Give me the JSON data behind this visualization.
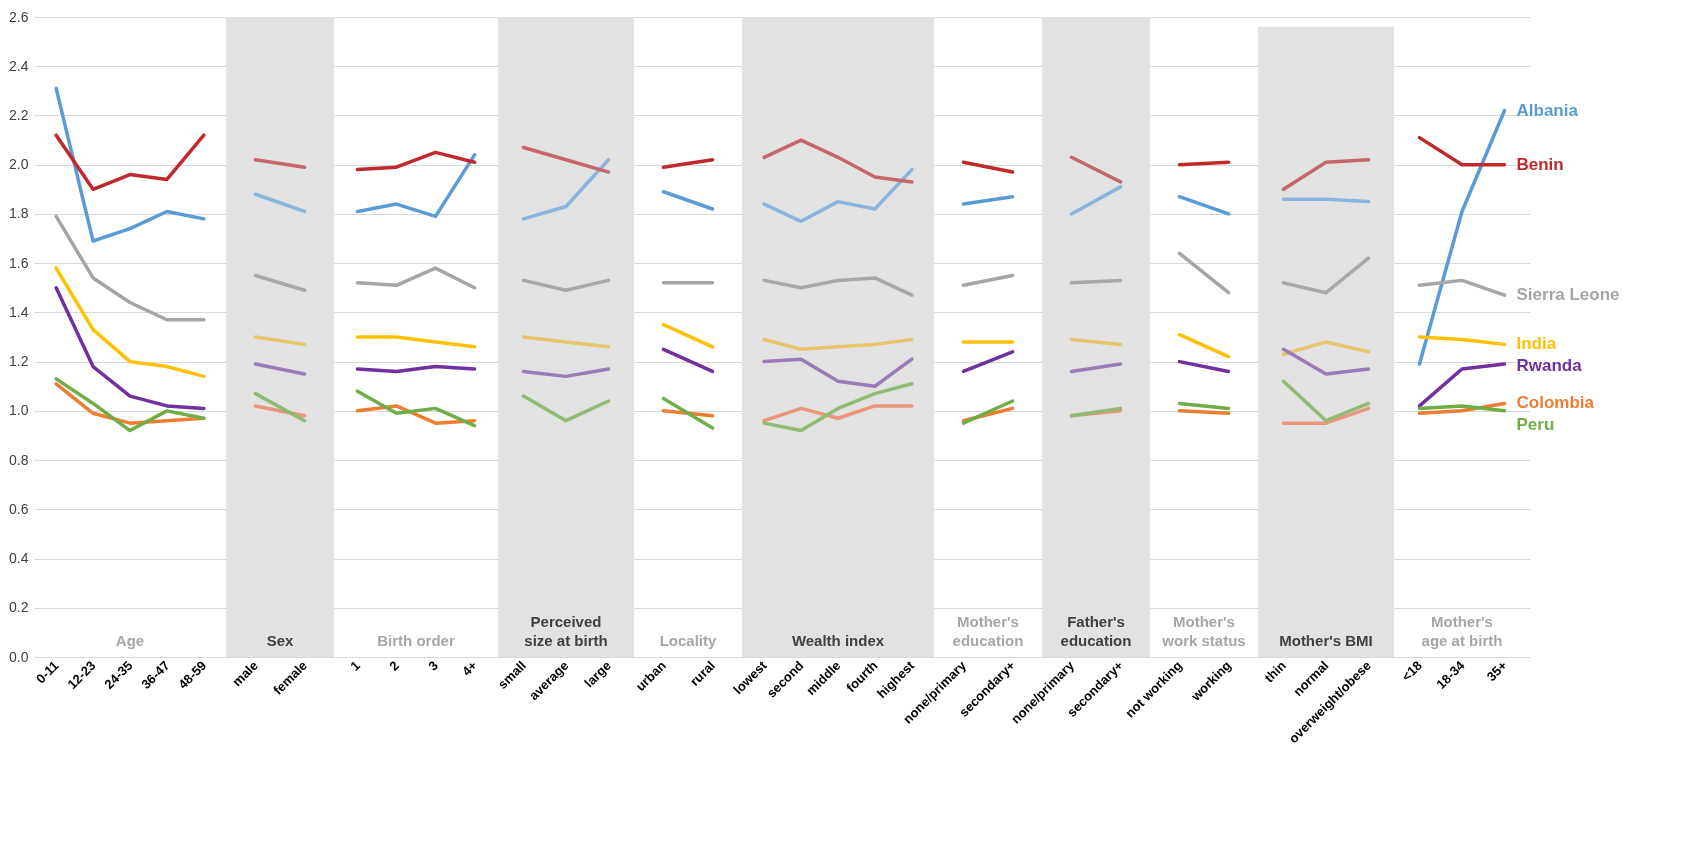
{
  "chart_data": [
    {
      "type": "line",
      "xlabel": "Age",
      "categories": [
        "0-11",
        "12-23",
        "24-35",
        "36-47",
        "48-59"
      ],
      "ylim": [
        0,
        2.6
      ],
      "yticks": [
        {
          "value": 0,
          "label": "0.0"
        },
        {
          "value": 0.2,
          "label": "0.2"
        },
        {
          "value": 0.4,
          "label": "0.4"
        },
        {
          "value": 0.6,
          "label": "0.6"
        },
        {
          "value": 0.8,
          "label": "0.8"
        },
        {
          "value": 1,
          "label": "1.0"
        },
        {
          "value": 1.2,
          "label": "1.2"
        },
        {
          "value": 1.4,
          "label": "1.4"
        },
        {
          "value": 1.6,
          "label": "1.6"
        },
        {
          "value": 1.8,
          "label": "1.8"
        },
        {
          "value": 2,
          "label": "2.0"
        },
        {
          "value": 2.2,
          "label": "2.2"
        },
        {
          "value": 2.4,
          "label": "2.4"
        },
        {
          "value": 2.6,
          "label": "2.6"
        }
      ],
      "grid": "y",
      "series": [
        {
          "color": "#5b9bd5",
          "values": [
            2.31,
            1.69,
            1.74,
            1.81,
            1.78
          ]
        },
        {
          "color": "#c0282d",
          "values": [
            2.12,
            1.9,
            1.96,
            1.94,
            2.12
          ]
        },
        {
          "color": "#a5a5a5",
          "values": [
            1.79,
            1.54,
            1.44,
            1.37,
            1.37
          ]
        },
        {
          "color": "#ffc000",
          "values": [
            1.58,
            1.33,
            1.2,
            1.18,
            1.14
          ]
        },
        {
          "color": "#7030a0",
          "values": [
            1.5,
            1.18,
            1.06,
            1.02,
            1.01
          ]
        },
        {
          "color": "#ed7d31",
          "values": [
            1.11,
            0.99,
            0.95,
            0.96,
            0.97
          ]
        },
        {
          "color": "#70ad47",
          "values": [
            1.13,
            1.03,
            0.92,
            1.0,
            0.97
          ]
        }
      ]
    },
    {
      "type": "line",
      "xlabel": "Sex",
      "categories": [
        "male",
        "female"
      ],
      "ylim": [
        0,
        2.6
      ],
      "yticks": [
        0,
        0.2,
        0.4,
        0.6,
        0.8,
        1,
        1.2,
        1.4,
        1.6,
        1.8,
        2,
        2.2,
        2.4,
        2.6
      ],
      "grid": "y",
      "tick_labels": "x",
      "bands": [
        {
          "axis": "y",
          "from": 0,
          "to": 2.6,
          "color": "#e2e2e2"
        }
      ],
      "series": [
        {
          "color": "#8ab4dc",
          "values": [
            1.88,
            1.81
          ]
        },
        {
          "color": "#c4676b",
          "values": [
            2.02,
            1.99
          ]
        },
        {
          "color": "#a8a8a8",
          "values": [
            1.55,
            1.49
          ]
        },
        {
          "color": "#e6c46a",
          "values": [
            1.3,
            1.27
          ]
        },
        {
          "color": "#9a7bb5",
          "values": [
            1.19,
            1.15
          ]
        },
        {
          "color": "#e8977a",
          "values": [
            1.02,
            0.98
          ]
        },
        {
          "color": "#8fbb75",
          "values": [
            1.07,
            0.96
          ]
        }
      ]
    },
    {
      "type": "line",
      "xlabel": "Birth order",
      "categories": [
        "1",
        "2",
        "3",
        "4+"
      ],
      "ylim": [
        0,
        2.6
      ],
      "yticks": [
        0,
        0.2,
        0.4,
        0.6,
        0.8,
        1,
        1.2,
        1.4,
        1.6,
        1.8,
        2,
        2.2,
        2.4,
        2.6
      ],
      "grid": "y",
      "tick_labels": "x",
      "series": [
        {
          "color": "#5b9bd5",
          "values": [
            1.81,
            1.84,
            1.79,
            2.04
          ]
        },
        {
          "color": "#c0282d",
          "values": [
            1.98,
            1.99,
            2.05,
            2.01
          ]
        },
        {
          "color": "#a5a5a5",
          "values": [
            1.52,
            1.51,
            1.58,
            1.5
          ]
        },
        {
          "color": "#ffc000",
          "values": [
            1.3,
            1.3,
            1.28,
            1.26
          ]
        },
        {
          "color": "#7030a0",
          "values": [
            1.17,
            1.16,
            1.18,
            1.17
          ]
        },
        {
          "color": "#ed7d31",
          "values": [
            1.0,
            1.02,
            0.95,
            0.96
          ]
        },
        {
          "color": "#70ad47",
          "values": [
            1.08,
            0.99,
            1.01,
            0.94
          ]
        }
      ]
    },
    {
      "type": "line",
      "xlabel": "Perceived size at birth",
      "categories": [
        "small",
        "average",
        "large"
      ],
      "ylim": [
        0,
        2.6
      ],
      "yticks": [
        0,
        0.2,
        0.4,
        0.6,
        0.8,
        1,
        1.2,
        1.4,
        1.6,
        1.8,
        2,
        2.2,
        2.4,
        2.6
      ],
      "grid": "y",
      "tick_labels": "x",
      "bands": [
        {
          "axis": "y",
          "from": 0,
          "to": 2.6,
          "color": "#e2e2e2"
        }
      ],
      "series": [
        {
          "color": "#8ab4dc",
          "values": [
            1.78,
            1.83,
            2.02
          ]
        },
        {
          "color": "#c4676b",
          "values": [
            2.07,
            2.02,
            1.97
          ]
        },
        {
          "color": "#a8a8a8",
          "values": [
            1.53,
            1.49,
            1.53
          ]
        },
        {
          "color": "#e6c46a",
          "values": [
            1.3,
            1.28,
            1.26
          ]
        },
        {
          "color": "#9a7bb5",
          "values": [
            1.16,
            1.14,
            1.17
          ]
        },
        {
          "color": "#8fbb75",
          "values": [
            1.06,
            0.96,
            1.04
          ]
        }
      ]
    },
    {
      "type": "line",
      "xlabel": "Locality",
      "categories": [
        "urban",
        "rural"
      ],
      "ylim": [
        0,
        2.6
      ],
      "yticks": [
        0,
        0.2,
        0.4,
        0.6,
        0.8,
        1,
        1.2,
        1.4,
        1.6,
        1.8,
        2,
        2.2,
        2.4,
        2.6
      ],
      "grid": "y",
      "tick_labels": "x",
      "series": [
        {
          "color": "#5b9bd5",
          "values": [
            1.89,
            1.82
          ]
        },
        {
          "color": "#c0282d",
          "values": [
            1.99,
            2.02
          ]
        },
        {
          "color": "#a5a5a5",
          "values": [
            1.52,
            1.52
          ]
        },
        {
          "color": "#ffc000",
          "values": [
            1.35,
            1.26
          ]
        },
        {
          "color": "#7030a0",
          "values": [
            1.25,
            1.16
          ]
        },
        {
          "color": "#ed7d31",
          "values": [
            1.0,
            0.98
          ]
        },
        {
          "color": "#70ad47",
          "values": [
            1.05,
            0.93
          ]
        }
      ]
    },
    {
      "type": "line",
      "xlabel": "Wealth index",
      "categories": [
        "lowest",
        "second",
        "middle",
        "fourth",
        "highest"
      ],
      "ylim": [
        0,
        2.6
      ],
      "yticks": [
        0,
        0.2,
        0.4,
        0.6,
        0.8,
        1,
        1.2,
        1.4,
        1.6,
        1.8,
        2,
        2.2,
        2.4,
        2.6
      ],
      "grid": "y",
      "tick_labels": "x",
      "bands": [
        {
          "axis": "y",
          "from": 0,
          "to": 2.6,
          "color": "#e2e2e2"
        }
      ],
      "series": [
        {
          "color": "#8ab4dc",
          "values": [
            1.84,
            1.77,
            1.85,
            1.82,
            1.98
          ]
        },
        {
          "color": "#c4676b",
          "values": [
            2.03,
            2.1,
            2.03,
            1.95,
            1.93
          ]
        },
        {
          "color": "#a8a8a8",
          "values": [
            1.53,
            1.5,
            1.53,
            1.54,
            1.47
          ]
        },
        {
          "color": "#e6c46a",
          "values": [
            1.29,
            1.25,
            1.26,
            1.27,
            1.29
          ]
        },
        {
          "color": "#9a7bb5",
          "values": [
            1.2,
            1.21,
            1.12,
            1.1,
            1.21
          ]
        },
        {
          "color": "#e8977a",
          "values": [
            0.96,
            1.01,
            0.97,
            1.02,
            1.02
          ]
        },
        {
          "color": "#8fbb75",
          "values": [
            0.95,
            0.92,
            1.01,
            1.07,
            1.11
          ]
        }
      ]
    },
    {
      "type": "line",
      "xlabel": "Mother's education",
      "categories": [
        "none/primary",
        "secondary+"
      ],
      "ylim": [
        0,
        2.6
      ],
      "yticks": [
        0,
        0.2,
        0.4,
        0.6,
        0.8,
        1,
        1.2,
        1.4,
        1.6,
        1.8,
        2,
        2.2,
        2.4,
        2.6
      ],
      "grid": "y",
      "tick_labels": "x",
      "series": [
        {
          "color": "#5b9bd5",
          "values": [
            1.84,
            1.87
          ]
        },
        {
          "color": "#c0282d",
          "values": [
            2.01,
            1.97
          ]
        },
        {
          "color": "#a5a5a5",
          "values": [
            1.51,
            1.55
          ]
        },
        {
          "color": "#ffc000",
          "values": [
            1.28,
            1.28
          ]
        },
        {
          "color": "#7030a0",
          "values": [
            1.16,
            1.24
          ]
        },
        {
          "color": "#ed7d31",
          "values": [
            0.96,
            1.01
          ]
        },
        {
          "color": "#70ad47",
          "values": [
            0.95,
            1.04
          ]
        }
      ]
    },
    {
      "type": "line",
      "xlabel": "Father's education",
      "categories": [
        "none/primary",
        "secondary+"
      ],
      "ylim": [
        0,
        2.6
      ],
      "yticks": [
        0,
        0.2,
        0.4,
        0.6,
        0.8,
        1,
        1.2,
        1.4,
        1.6,
        1.8,
        2,
        2.2,
        2.4,
        2.6
      ],
      "grid": "y",
      "tick_labels": "x",
      "bands": [
        {
          "axis": "y",
          "from": 0,
          "to": 2.6,
          "color": "#e2e2e2"
        }
      ],
      "series": [
        {
          "color": "#8ab4dc",
          "values": [
            1.8,
            1.91
          ]
        },
        {
          "color": "#c4676b",
          "values": [
            2.03,
            1.93
          ]
        },
        {
          "color": "#a8a8a8",
          "values": [
            1.52,
            1.53
          ]
        },
        {
          "color": "#e6c46a",
          "values": [
            1.29,
            1.27
          ]
        },
        {
          "color": "#9a7bb5",
          "values": [
            1.16,
            1.19
          ]
        },
        {
          "color": "#e8977a",
          "values": [
            0.98,
            1.0
          ]
        },
        {
          "color": "#8fbb75",
          "values": [
            0.98,
            1.01
          ]
        }
      ]
    },
    {
      "type": "line",
      "xlabel": "Mother's work status",
      "categories": [
        "not working",
        "working"
      ],
      "ylim": [
        0,
        2.6
      ],
      "yticks": [
        0,
        0.2,
        0.4,
        0.6,
        0.8,
        1,
        1.2,
        1.4,
        1.6,
        1.8,
        2,
        2.2,
        2.4,
        2.6
      ],
      "grid": "y",
      "tick_labels": "x",
      "series": [
        {
          "color": "#5b9bd5",
          "values": [
            1.87,
            1.8
          ]
        },
        {
          "color": "#c0282d",
          "values": [
            2.0,
            2.01
          ]
        },
        {
          "color": "#a5a5a5",
          "values": [
            1.64,
            1.48
          ]
        },
        {
          "color": "#ffc000",
          "values": [
            1.31,
            1.22
          ]
        },
        {
          "color": "#7030a0",
          "values": [
            1.2,
            1.16
          ]
        },
        {
          "color": "#ed7d31",
          "values": [
            1.0,
            0.99
          ]
        },
        {
          "color": "#70ad47",
          "values": [
            1.03,
            1.01
          ]
        }
      ]
    },
    {
      "type": "line",
      "xlabel": "Mother's BMI",
      "categories": [
        "thin",
        "normal",
        "overweight/obese"
      ],
      "ylim": [
        0,
        2.6
      ],
      "yticks": [
        0,
        0.2,
        0.4,
        0.6,
        0.8,
        1,
        1.2,
        1.4,
        1.6,
        1.8,
        2,
        2.2,
        2.4,
        2.6
      ],
      "grid": "y",
      "tick_labels": "x",
      "bands": [
        {
          "axis": "y",
          "from": 0,
          "to": 2.56,
          "color": "#e2e2e2"
        }
      ],
      "series": [
        {
          "color": "#8ab4dc",
          "values": [
            1.86,
            1.86,
            1.85
          ]
        },
        {
          "color": "#c4676b",
          "values": [
            1.9,
            2.01,
            2.02
          ]
        },
        {
          "color": "#a8a8a8",
          "values": [
            1.52,
            1.48,
            1.62
          ]
        },
        {
          "color": "#e6c46a",
          "values": [
            1.23,
            1.28,
            1.24
          ]
        },
        {
          "color": "#9a7bb5",
          "values": [
            1.25,
            1.15,
            1.17
          ]
        },
        {
          "color": "#e8977a",
          "values": [
            0.95,
            0.95,
            1.01
          ]
        },
        {
          "color": "#8fbb75",
          "values": [
            1.12,
            0.96,
            1.03
          ]
        }
      ]
    },
    {
      "type": "line",
      "xlabel": "Mother's age at birth",
      "categories": [
        "<18",
        "18-34",
        "35+"
      ],
      "ylim": [
        0,
        2.6
      ],
      "yticks": [
        0,
        0.2,
        0.4,
        0.6,
        0.8,
        1,
        1.2,
        1.4,
        1.6,
        1.8,
        2,
        2.2,
        2.4,
        2.6
      ],
      "grid": "y",
      "tick_labels": "x",
      "series": [
        {
          "name": "Albania",
          "color": "#5b9bd5",
          "values": [
            1.19,
            1.81,
            2.22
          ]
        },
        {
          "name": "Benin",
          "color": "#c0282d",
          "values": [
            2.11,
            2.0,
            2.0
          ]
        },
        {
          "name": "Sierra Leone",
          "color": "#a5a5a5",
          "values": [
            1.51,
            1.53,
            1.47
          ]
        },
        {
          "name": "India",
          "color": "#ffc000",
          "values": [
            1.3,
            1.29,
            1.27
          ]
        },
        {
          "name": "Rwanda",
          "color": "#7030a0",
          "values": [
            1.02,
            1.17,
            1.19
          ]
        },
        {
          "name": "Colombia",
          "color": "#ed7d31",
          "values": [
            0.99,
            1.0,
            1.03
          ]
        },
        {
          "name": "Peru",
          "color": "#70ad47",
          "values": [
            1.01,
            1.02,
            1.0
          ]
        }
      ]
    }
  ]
}
